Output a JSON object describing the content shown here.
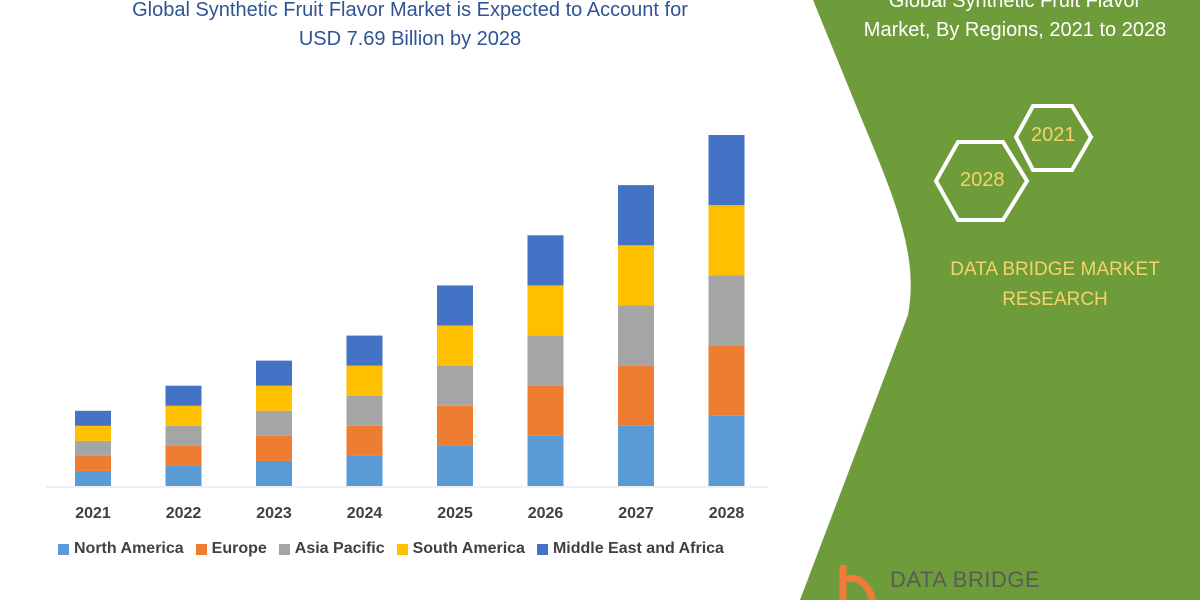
{
  "header": {
    "title_line1": "Global Synthetic Fruit Flavor Market is Expected to Account for",
    "title_line2": "USD 7.69 Billion by 2028"
  },
  "side_panel": {
    "title_line1": "Global Synthetic Fruit Flavor",
    "title_line2": "Market, By Regions, 2021 to 2028",
    "hex_years": [
      "2021",
      "2028"
    ],
    "brand_line1": "DATA BRIDGE MARKET",
    "brand_line2": "RESEARCH",
    "logo_text": "DATA BRIDGE",
    "color": "#6f9c3a"
  },
  "chart_data": {
    "type": "bar",
    "stacked": true,
    "categories": [
      "2021",
      "2022",
      "2023",
      "2024",
      "2025",
      "2026",
      "2027",
      "2028"
    ],
    "series": [
      {
        "name": "North America",
        "color": "#5b9bd5",
        "values": [
          1.5,
          2,
          2.5,
          3,
          4,
          5,
          6,
          7
        ]
      },
      {
        "name": "Europe",
        "color": "#ed7d31",
        "values": [
          1.5,
          2,
          2.5,
          3,
          4,
          5,
          6,
          7
        ]
      },
      {
        "name": "Asia Pacific",
        "color": "#a5a5a5",
        "values": [
          1.5,
          2,
          2.5,
          3,
          4,
          5,
          6,
          7
        ]
      },
      {
        "name": "South America",
        "color": "#ffc000",
        "values": [
          1.5,
          2,
          2.5,
          3,
          4,
          5,
          6,
          7
        ]
      },
      {
        "name": "Middle East and Africa",
        "color": "#4472c4",
        "values": [
          1.5,
          2,
          2.5,
          3,
          4,
          5,
          6,
          7
        ]
      }
    ],
    "ylim": [
      0,
      35
    ],
    "grid": false,
    "y_axis_shown": false,
    "legend": "bottom"
  }
}
